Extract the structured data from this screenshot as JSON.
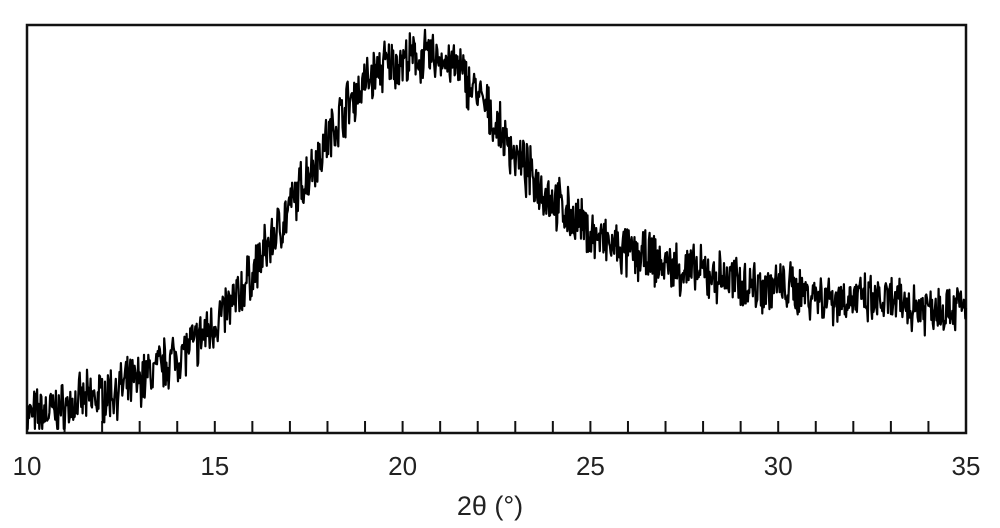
{
  "chart_data": {
    "type": "line",
    "xlabel": "2θ (°)",
    "ylabel": "",
    "title": "",
    "xlim": [
      10,
      35
    ],
    "x_ticks": [
      {
        "value": 10,
        "label": "10"
      },
      {
        "value": 15,
        "label": "15"
      },
      {
        "value": 20,
        "label": "20"
      },
      {
        "value": 25,
        "label": "25"
      },
      {
        "value": 30,
        "label": "30"
      },
      {
        "value": 35,
        "label": "35"
      }
    ],
    "minor_tick_step": 1,
    "y_ticks_shown": false,
    "grid": false,
    "series": [
      {
        "color": "#000000",
        "x": [
          10,
          10.5,
          11,
          11.5,
          12,
          12.5,
          13,
          13.5,
          14,
          14.5,
          15,
          15.5,
          16,
          16.5,
          17,
          17.5,
          18,
          18.5,
          19,
          19.5,
          20,
          20.5,
          21,
          21.5,
          22,
          22.5,
          23,
          23.5,
          24,
          24.5,
          25,
          25.5,
          26,
          26.5,
          27,
          27.5,
          28,
          28.5,
          29,
          29.5,
          30,
          30.5,
          31,
          31.5,
          32,
          32.5,
          33,
          33.5,
          34,
          34.5,
          35
        ],
        "y": [
          0.04,
          0.05,
          0.06,
          0.08,
          0.09,
          0.11,
          0.13,
          0.16,
          0.19,
          0.22,
          0.27,
          0.32,
          0.39,
          0.47,
          0.55,
          0.64,
          0.72,
          0.8,
          0.86,
          0.9,
          0.91,
          0.92,
          0.92,
          0.89,
          0.83,
          0.75,
          0.68,
          0.62,
          0.57,
          0.53,
          0.49,
          0.46,
          0.44,
          0.43,
          0.41,
          0.4,
          0.39,
          0.38,
          0.37,
          0.36,
          0.36,
          0.35,
          0.34,
          0.33,
          0.33,
          0.32,
          0.32,
          0.31,
          0.31,
          0.31,
          0.31
        ]
      }
    ]
  }
}
